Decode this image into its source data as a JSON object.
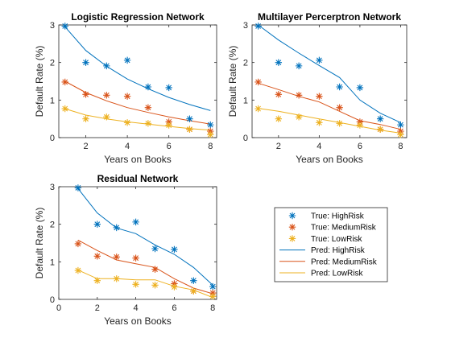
{
  "chart_data": [
    {
      "type": "line",
      "title": "Logistic Regression Network",
      "xlabel": "Years on Books",
      "ylabel": "Default Rate (%)",
      "xlim": [
        0.7,
        8.3
      ],
      "ylim": [
        0,
        3
      ],
      "xticks": [
        2,
        4,
        6,
        8
      ],
      "yticks": [
        0,
        1,
        2,
        3
      ],
      "x": [
        1,
        2,
        3,
        4,
        5,
        6,
        7,
        8
      ],
      "series": [
        {
          "name": "True: HighRisk",
          "kind": "marker",
          "color": "#0072BD",
          "values": [
            2.97,
            2.0,
            1.91,
            2.06,
            1.35,
            1.33,
            0.5,
            0.34
          ]
        },
        {
          "name": "True: MediumRisk",
          "kind": "marker",
          "color": "#D95319",
          "values": [
            1.48,
            1.15,
            1.13,
            1.1,
            0.8,
            0.42,
            0.22,
            0.17
          ]
        },
        {
          "name": "True: LowRisk",
          "kind": "marker",
          "color": "#EDB120",
          "values": [
            0.77,
            0.5,
            0.55,
            0.4,
            0.38,
            0.33,
            0.22,
            0.08
          ]
        },
        {
          "name": "Pred: HighRisk",
          "kind": "line",
          "color": "#0072BD",
          "values": [
            2.95,
            2.32,
            1.9,
            1.56,
            1.3,
            1.07,
            0.88,
            0.72
          ]
        },
        {
          "name": "Pred: MediumRisk",
          "kind": "line",
          "color": "#D95319",
          "values": [
            1.5,
            1.2,
            0.98,
            0.8,
            0.67,
            0.55,
            0.45,
            0.36
          ]
        },
        {
          "name": "Pred: LowRisk",
          "kind": "line",
          "color": "#EDB120",
          "values": [
            0.77,
            0.6,
            0.5,
            0.42,
            0.36,
            0.3,
            0.24,
            0.2
          ]
        }
      ]
    },
    {
      "type": "line",
      "title": "Multilayer Percerptron Network",
      "xlabel": "Years on Books",
      "ylabel": "Default Rate (%)",
      "xlim": [
        0.7,
        8.3
      ],
      "ylim": [
        0,
        3
      ],
      "xticks": [
        2,
        4,
        6,
        8
      ],
      "yticks": [
        0,
        1,
        2,
        3
      ],
      "x": [
        1,
        2,
        3,
        4,
        5,
        6,
        7,
        8
      ],
      "series": [
        {
          "name": "True: HighRisk",
          "kind": "marker",
          "color": "#0072BD",
          "values": [
            2.97,
            2.0,
            1.91,
            2.06,
            1.35,
            1.33,
            0.5,
            0.34
          ]
        },
        {
          "name": "True: MediumRisk",
          "kind": "marker",
          "color": "#D95319",
          "values": [
            1.48,
            1.15,
            1.13,
            1.1,
            0.8,
            0.42,
            0.22,
            0.17
          ]
        },
        {
          "name": "True: LowRisk",
          "kind": "marker",
          "color": "#EDB120",
          "values": [
            0.77,
            0.5,
            0.55,
            0.4,
            0.38,
            0.33,
            0.22,
            0.08
          ]
        },
        {
          "name": "Pred: HighRisk",
          "kind": "line",
          "color": "#0072BD",
          "values": [
            3.0,
            2.6,
            2.25,
            1.92,
            1.6,
            1.0,
            0.65,
            0.4
          ]
        },
        {
          "name": "Pred: MediumRisk",
          "kind": "line",
          "color": "#D95319",
          "values": [
            1.45,
            1.28,
            1.1,
            0.95,
            0.7,
            0.45,
            0.35,
            0.22
          ]
        },
        {
          "name": "Pred: LowRisk",
          "kind": "line",
          "color": "#EDB120",
          "values": [
            0.78,
            0.7,
            0.6,
            0.5,
            0.4,
            0.3,
            0.2,
            0.12
          ]
        }
      ]
    },
    {
      "type": "line",
      "title": "Residual Network",
      "xlabel": "Years on Books",
      "ylabel": "Default Rate (%)",
      "xlim": [
        0,
        8.2
      ],
      "ylim": [
        0,
        3
      ],
      "xticks": [
        0,
        2,
        4,
        6,
        8
      ],
      "yticks": [
        0,
        1,
        2,
        3
      ],
      "x": [
        1,
        2,
        3,
        4,
        5,
        6,
        7,
        8
      ],
      "series": [
        {
          "name": "True: HighRisk",
          "kind": "marker",
          "color": "#0072BD",
          "values": [
            2.97,
            2.0,
            1.91,
            2.06,
            1.35,
            1.33,
            0.5,
            0.34
          ]
        },
        {
          "name": "True: MediumRisk",
          "kind": "marker",
          "color": "#D95319",
          "values": [
            1.48,
            1.15,
            1.13,
            1.1,
            0.8,
            0.42,
            0.22,
            0.17
          ]
        },
        {
          "name": "True: LowRisk",
          "kind": "marker",
          "color": "#EDB120",
          "values": [
            0.77,
            0.5,
            0.55,
            0.4,
            0.38,
            0.33,
            0.22,
            0.08
          ]
        },
        {
          "name": "Pred: HighRisk",
          "kind": "line",
          "color": "#0072BD",
          "values": [
            2.95,
            2.3,
            1.9,
            1.75,
            1.45,
            1.2,
            0.85,
            0.38
          ]
        },
        {
          "name": "Pred: MediumRisk",
          "kind": "line",
          "color": "#D95319",
          "values": [
            1.58,
            1.3,
            1.05,
            0.95,
            0.85,
            0.55,
            0.3,
            0.15
          ]
        },
        {
          "name": "Pred: LowRisk",
          "kind": "line",
          "color": "#EDB120",
          "values": [
            0.78,
            0.55,
            0.55,
            0.52,
            0.52,
            0.35,
            0.25,
            0.05
          ]
        }
      ]
    }
  ],
  "legend": {
    "placement": "bottom-right",
    "entries": [
      {
        "label": "True: HighRisk",
        "kind": "marker",
        "color": "#0072BD"
      },
      {
        "label": "True: MediumRisk",
        "kind": "marker",
        "color": "#D95319"
      },
      {
        "label": "True: LowRisk",
        "kind": "marker",
        "color": "#EDB120"
      },
      {
        "label": "Pred: HighRisk",
        "kind": "line",
        "color": "#0072BD"
      },
      {
        "label": "Pred: MediumRisk",
        "kind": "line",
        "color": "#D95319"
      },
      {
        "label": "Pred: LowRisk",
        "kind": "line",
        "color": "#EDB120"
      }
    ]
  }
}
